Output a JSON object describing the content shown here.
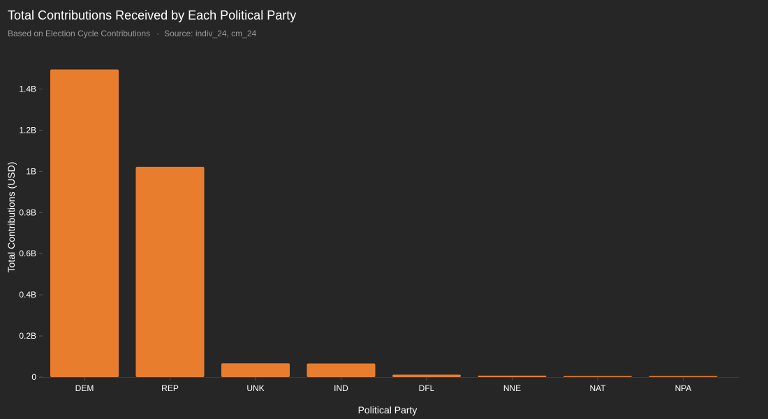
{
  "chart_data": {
    "type": "bar",
    "title": "Total Contributions Received by Each Political Party",
    "subtitle": "Based on Election Cycle Contributions",
    "source": "Source: indiv_24, cm_24",
    "xlabel": "Political Party",
    "ylabel": "Total Contributions (USD)",
    "categories": [
      "DEM",
      "REP",
      "UNK",
      "IND",
      "DFL",
      "NNE",
      "NAT",
      "NPA"
    ],
    "values": [
      1495000000,
      1022000000,
      67000000,
      66000000,
      12000000,
      7000000,
      3000000,
      2000000
    ],
    "ylim": [
      0,
      1500000000
    ],
    "yticks": [
      {
        "value": 0,
        "label": "0"
      },
      {
        "value": 200000000,
        "label": "0.2B"
      },
      {
        "value": 400000000,
        "label": "0.4B"
      },
      {
        "value": 600000000,
        "label": "0.6B"
      },
      {
        "value": 800000000,
        "label": "0.8B"
      },
      {
        "value": 1000000000,
        "label": "1B"
      },
      {
        "value": 1200000000,
        "label": "1.2B"
      },
      {
        "value": 1400000000,
        "label": "1.4B"
      }
    ],
    "grid": false,
    "bar_color": "#e87d2e",
    "background_color": "#262626"
  }
}
